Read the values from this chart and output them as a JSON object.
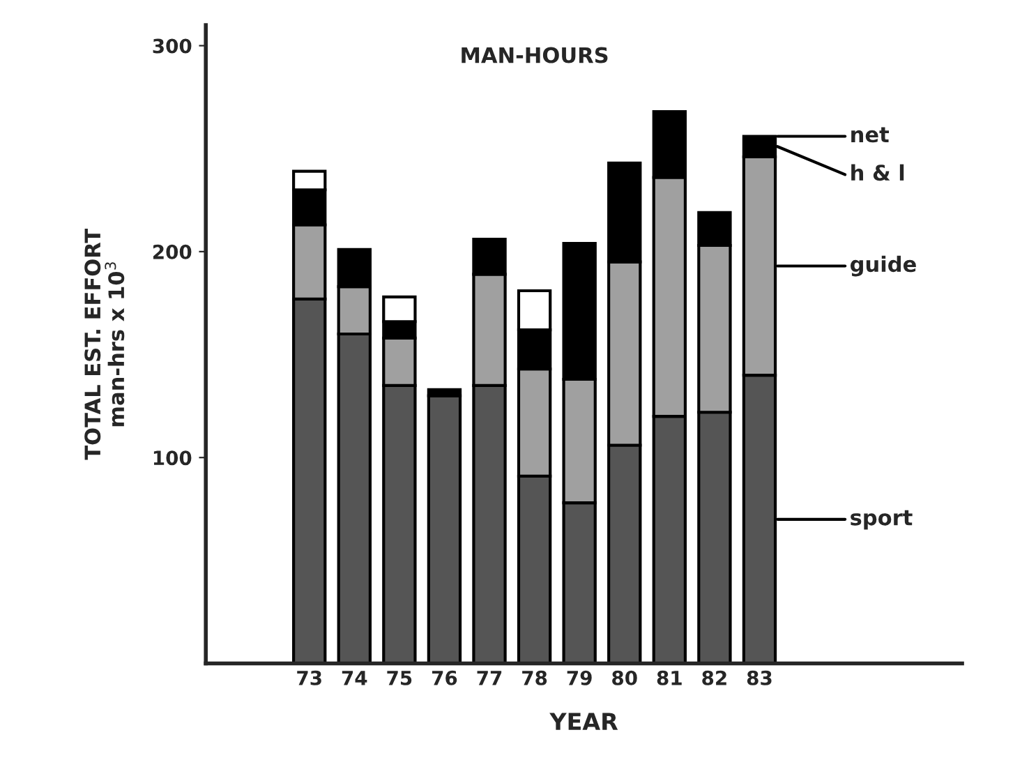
{
  "chart_data": {
    "type": "bar",
    "stacked": true,
    "title": "MAN-HOURS",
    "xlabel": "YEAR",
    "ylabel": "TOTAL EST. EFFORT\nman-hrs x 10$^{3}$",
    "categories": [
      "73",
      "74",
      "75",
      "76",
      "77",
      "78",
      "79",
      "80",
      "81",
      "82",
      "83"
    ],
    "series": [
      {
        "name": "sport",
        "color": "#555555",
        "values": [
          177,
          160,
          135,
          130,
          135,
          91,
          78,
          106,
          120,
          122,
          140
        ]
      },
      {
        "name": "guide",
        "color": "#a0a0a0",
        "values": [
          36,
          23,
          23,
          0,
          54,
          52,
          60,
          89,
          116,
          81,
          106
        ]
      },
      {
        "name": "h & l",
        "color": "#000000",
        "values": [
          17,
          18,
          8,
          3,
          17,
          19,
          66,
          48,
          32,
          16,
          10
        ]
      },
      {
        "name": "net",
        "color": "#ffffff",
        "values": [
          9,
          0,
          12,
          0,
          0,
          19,
          0,
          0,
          0,
          0,
          0
        ]
      }
    ],
    "ylim": [
      0,
      310
    ],
    "yticks": [
      100,
      200,
      300
    ],
    "grid": false,
    "legend": "right"
  }
}
